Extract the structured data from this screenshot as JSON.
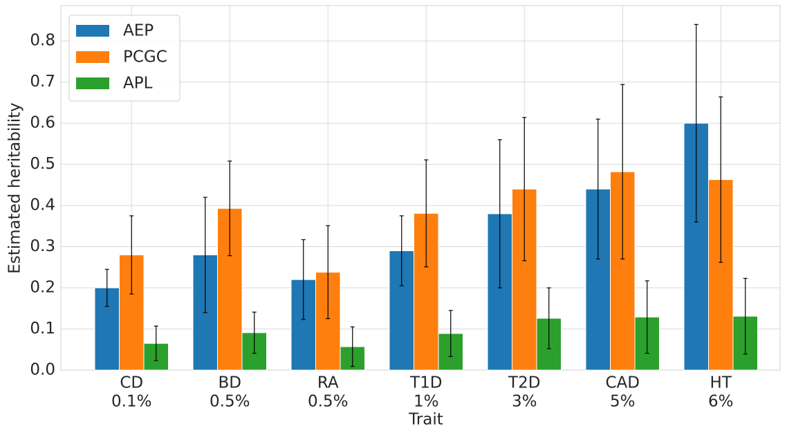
{
  "chart_data": {
    "type": "bar",
    "x_label": "Trait",
    "y_label": "Estimated heritability",
    "categories": [
      [
        "CD",
        "0.1%"
      ],
      [
        "BD",
        "0.5%"
      ],
      [
        "RA",
        "0.5%"
      ],
      [
        "T1D",
        "1%"
      ],
      [
        "T2D",
        "3%"
      ],
      [
        "CAD",
        "5%"
      ],
      [
        "HT",
        "6%"
      ]
    ],
    "series": [
      {
        "name": "AEP",
        "color": "#1f77b4",
        "values": [
          0.2,
          0.28,
          0.22,
          0.29,
          0.38,
          0.44,
          0.6
        ],
        "errors": [
          0.045,
          0.14,
          0.097,
          0.085,
          0.18,
          0.17,
          0.24
        ]
      },
      {
        "name": "PCGC",
        "color": "#ff7f0e",
        "values": [
          0.28,
          0.393,
          0.238,
          0.381,
          0.44,
          0.482,
          0.463
        ],
        "errors": [
          0.095,
          0.115,
          0.113,
          0.13,
          0.174,
          0.212,
          0.201
        ]
      },
      {
        "name": "APL",
        "color": "#2ca02c",
        "values": [
          0.065,
          0.091,
          0.057,
          0.089,
          0.126,
          0.129,
          0.131
        ],
        "errors": [
          0.042,
          0.05,
          0.048,
          0.056,
          0.074,
          0.088,
          0.092
        ]
      }
    ],
    "ylim": [
      0,
      0.886
    ],
    "yticks": [
      {
        "value": 0,
        "label": "0.0"
      },
      0.1,
      0.2,
      0.3,
      0.4,
      0.5,
      0.6,
      0.7,
      0.8
    ],
    "grid": true,
    "legend": "upper left"
  }
}
